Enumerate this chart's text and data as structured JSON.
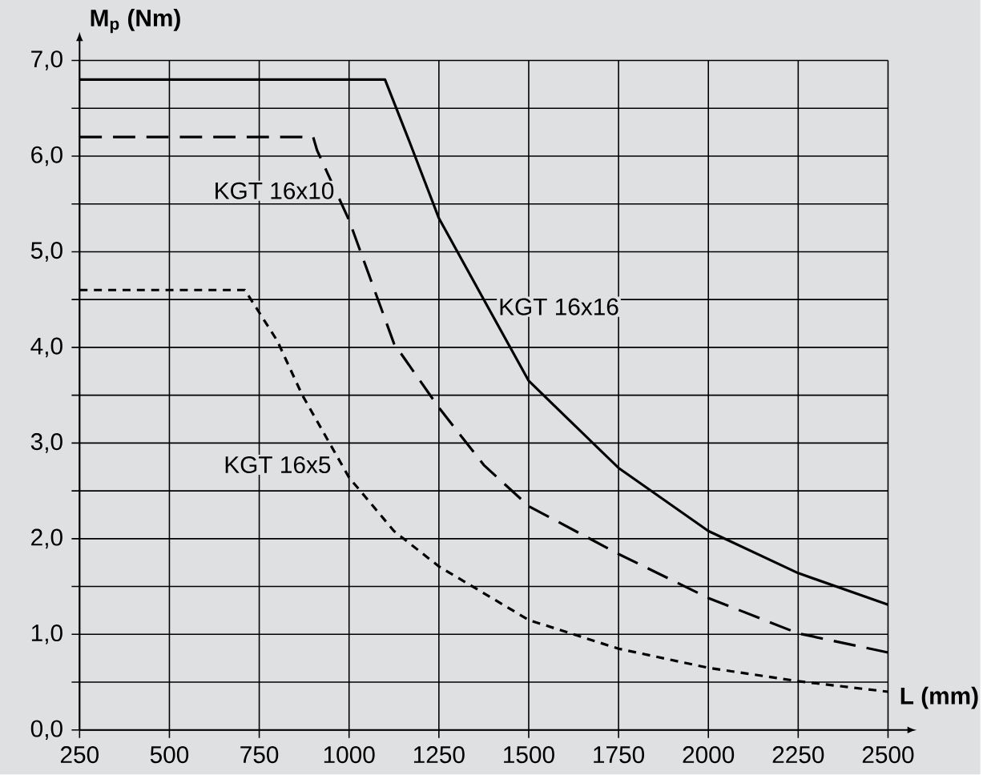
{
  "chart_data": {
    "type": "line",
    "xlabel": "L (mm)",
    "ylabel": "M$_{p}$ (Nm)",
    "x": [
      250,
      1100,
      1163,
      1250,
      1375,
      1500,
      1750,
      2000,
      2250,
      2500
    ],
    "series": [
      {
        "name": "KGT 16x16",
        "color": "#000000",
        "line_style": "solid",
        "values": [
          6.8,
          6.8,
          6.2,
          5.35,
          4.5,
          3.65,
          2.74,
          2.08,
          1.64,
          1.31
        ]
      },
      {
        "name": "KGT 16x10",
        "color": "#000000",
        "line_style": "dashed",
        "x": [
          250,
          900,
          911,
          1000,
          1125,
          1250,
          1375,
          1500,
          1750,
          2000,
          2250,
          2500
        ],
        "values": [
          6.2,
          6.2,
          6.06,
          5.33,
          4.04,
          3.37,
          2.77,
          2.34,
          1.84,
          1.38,
          1.01,
          0.81
        ]
      },
      {
        "name": "KGT 16x5",
        "color": "#000000",
        "line_style": "dotted",
        "x": [
          250,
          710,
          800,
          870,
          1000,
          1125,
          1250,
          1500,
          1750,
          2000,
          2250,
          2500
        ],
        "values": [
          4.6,
          4.6,
          4.07,
          3.5,
          2.64,
          2.08,
          1.71,
          1.15,
          0.85,
          0.65,
          0.51,
          0.4
        ]
      }
    ],
    "xlim": [
      250,
      2500
    ],
    "ylim": [
      0,
      7
    ],
    "xticks": [
      250,
      500,
      750,
      1000,
      1250,
      1500,
      1750,
      2000,
      2250,
      2500
    ],
    "yticks": [
      {
        "value": 0,
        "label": "0,0"
      },
      {
        "value": 0.5,
        "label": null
      },
      {
        "value": 1,
        "label": "1,0"
      },
      {
        "value": 1.5,
        "label": null
      },
      {
        "value": 2,
        "label": "2,0"
      },
      {
        "value": 2.5,
        "label": null
      },
      {
        "value": 3,
        "label": "3,0"
      },
      {
        "value": 3.5,
        "label": null
      },
      {
        "value": 4,
        "label": "4,0"
      },
      {
        "value": 4.5,
        "label": null
      },
      {
        "value": 5,
        "label": "5,0"
      },
      {
        "value": 5.5,
        "label": null
      },
      {
        "value": 6,
        "label": "6,0"
      },
      {
        "value": 6.5,
        "label": null
      },
      {
        "value": 7,
        "label": "7,0"
      }
    ],
    "grid": true,
    "marker": "none"
  }
}
